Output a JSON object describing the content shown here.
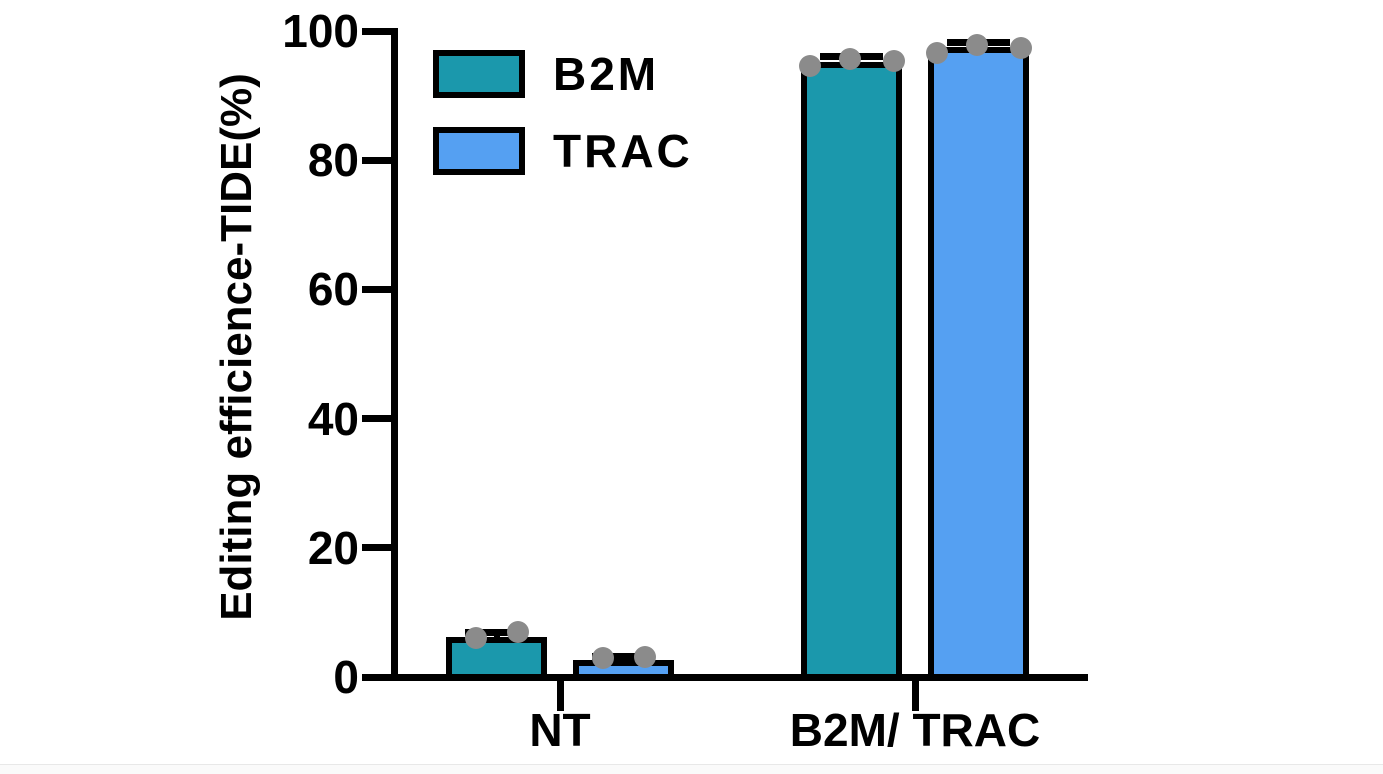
{
  "colors": {
    "axis": "#000000",
    "text": "#000000",
    "background": "#ffffff",
    "b2m_fill": "#1B98AC",
    "trac_fill": "#55A0F2",
    "point_fill": "#8B8B8B",
    "bar_border": "#000000",
    "bottom_strip": "#fafafa"
  },
  "chart_data": {
    "type": "bar",
    "title": "",
    "xlabel": "",
    "ylabel": "Editing efficience-TIDE(%)",
    "ylim": [
      0,
      100
    ],
    "yticks": [
      0,
      20,
      40,
      60,
      80,
      100
    ],
    "grid": false,
    "categories": [
      "NT",
      "B2M/ TRAC"
    ],
    "legend": {
      "position": "top-left-inside",
      "entries": [
        "B2M",
        "TRAC"
      ]
    },
    "point_color": "#8B8B8B",
    "series": [
      {
        "name": "B2M",
        "color": "#1B98AC",
        "values": [
          6.2,
          95.2
        ],
        "sem": [
          0.7,
          0.9
        ],
        "points": [
          [
            6.0,
            6.9
          ],
          [
            94.6,
            95.7,
            95.4
          ]
        ]
      },
      {
        "name": "TRAC",
        "color": "#55A0F2",
        "values": [
          2.6,
          97.5
        ],
        "sem": [
          0.6,
          0.8
        ],
        "points": [
          [
            2.9,
            3.1
          ],
          [
            96.6,
            97.9,
            97.3
          ]
        ]
      }
    ]
  }
}
